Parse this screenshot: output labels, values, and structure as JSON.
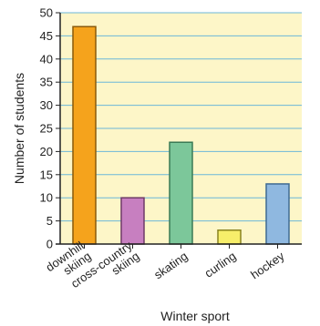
{
  "chart_data": {
    "type": "bar",
    "categories": [
      [
        "downhill",
        "skiing"
      ],
      [
        "cross-country",
        "skiing"
      ],
      [
        "skating"
      ],
      [
        "curling"
      ],
      [
        "hockey"
      ]
    ],
    "values": [
      47,
      10,
      22,
      3,
      13
    ],
    "xlabel": "Winter sport",
    "ylabel": "Number of students",
    "ylim": [
      0,
      50
    ],
    "yticks": [
      0,
      5,
      10,
      15,
      20,
      25,
      30,
      35,
      40,
      45,
      50
    ],
    "grid": true,
    "colors": {
      "background": "#fdf6c8",
      "grid": "#6bb7d9",
      "axis": "#222222",
      "bars": [
        "#f5a31c",
        "#c77fc0",
        "#7cc79a",
        "#f7ee6a",
        "#8fb8e0"
      ],
      "bar_stroke": [
        "#8a5a0a",
        "#6e3a68",
        "#3a7a55",
        "#8a8420",
        "#3f6a92"
      ]
    }
  }
}
